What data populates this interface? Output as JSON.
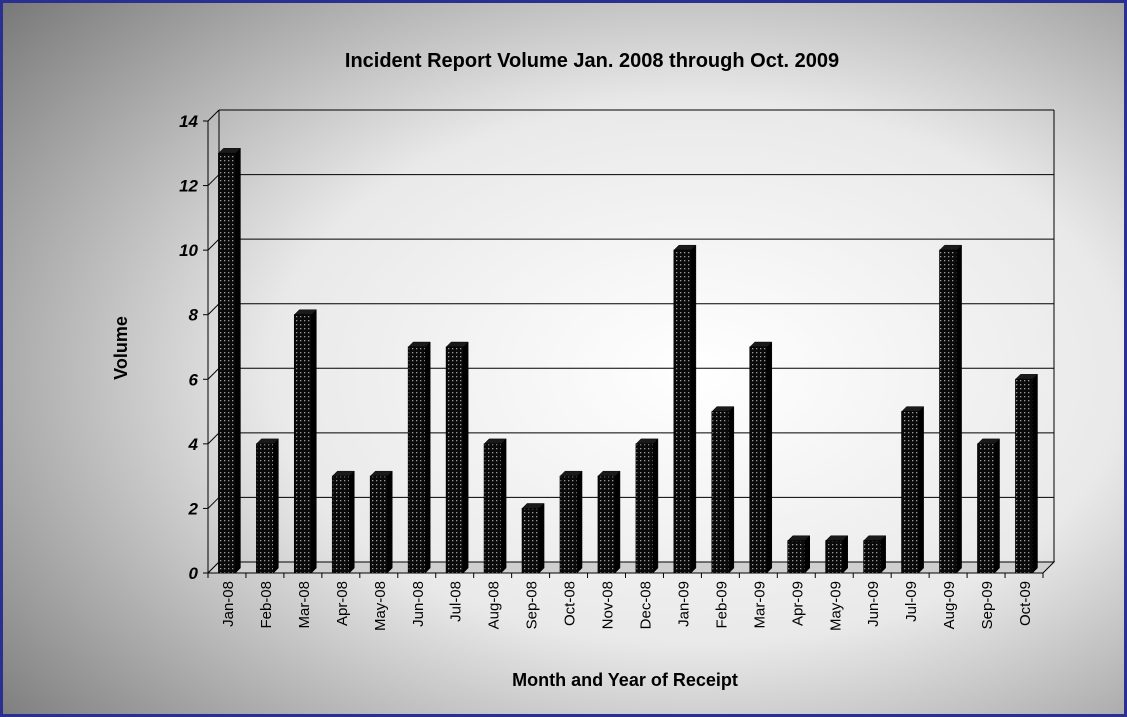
{
  "chart_data": {
    "type": "bar",
    "title": "Incident Report Volume Jan. 2008 through Oct. 2009",
    "xlabel": "Month and Year of Receipt",
    "ylabel": "Volume",
    "ylim": [
      0,
      14
    ],
    "yticks": [
      0,
      2,
      4,
      6,
      8,
      10,
      12,
      14
    ],
    "grid": true,
    "categories": [
      "Jan-08",
      "Feb-08",
      "Mar-08",
      "Apr-08",
      "May-08",
      "Jun-08",
      "Jul-08",
      "Aug-08",
      "Sep-08",
      "Oct-08",
      "Nov-08",
      "Dec-08",
      "Jan-09",
      "Feb-09",
      "Mar-09",
      "Apr-09",
      "May-09",
      "Jun-09",
      "Jul-09",
      "Aug-09",
      "Sep-09",
      "Oct-09"
    ],
    "values": [
      13,
      4,
      8,
      3,
      3,
      7,
      7,
      4,
      2,
      3,
      3,
      4,
      10,
      5,
      7,
      1,
      1,
      1,
      5,
      10,
      4,
      6
    ],
    "colors": {
      "bar": "#0a0a0a",
      "bar_dots": "#8a8a8a",
      "frame_border": "#2b2f8f",
      "gridline": "#000000"
    }
  }
}
